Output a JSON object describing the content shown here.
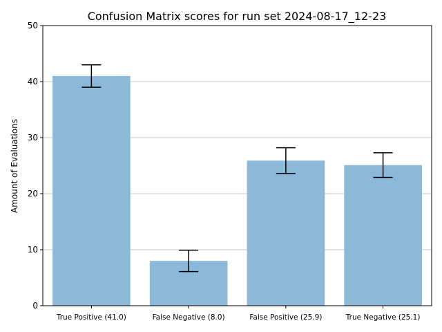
{
  "chart_data": {
    "type": "bar",
    "title": "Confusion Matrix scores for run set 2024-08-17_12-23",
    "xlabel": "",
    "ylabel": "Amount of Evaluations",
    "ylim": [
      0,
      50
    ],
    "yticks": [
      0,
      10,
      20,
      30,
      40,
      50
    ],
    "grid": "y",
    "categories": [
      "True Positive (41.0)",
      "False Negative (8.0)",
      "False Positive (25.9)",
      "True Negative (25.1)"
    ],
    "values": [
      41.0,
      8.0,
      25.9,
      25.1
    ],
    "errors": [
      2.0,
      1.9,
      2.3,
      2.2
    ],
    "bar_color": "#8cb8d9",
    "error_color": "#000000"
  }
}
